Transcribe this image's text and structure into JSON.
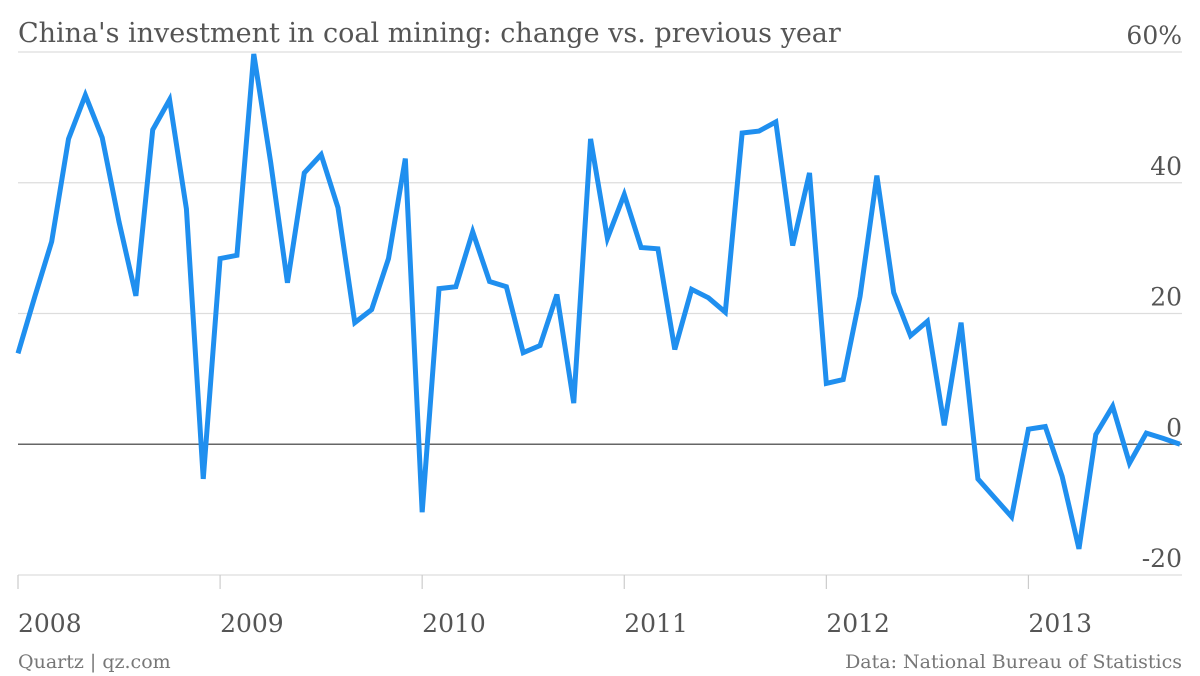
{
  "chart_data": {
    "type": "line",
    "title": "China's investment in coal mining: change vs. previous year",
    "source": "Data: National Bureau of Statistics",
    "credit": "Quartz | qz.com",
    "categories": [
      "2008",
      null,
      null,
      null,
      null,
      null,
      null,
      null,
      null,
      null,
      null,
      null,
      "2009",
      null,
      null,
      null,
      null,
      null,
      null,
      null,
      null,
      null,
      null,
      null,
      "2010",
      null,
      null,
      null,
      null,
      null,
      null,
      null,
      null,
      null,
      null,
      null,
      "2011",
      null,
      null,
      null,
      null,
      null,
      null,
      null,
      null,
      null,
      null,
      null,
      "2012",
      null,
      null,
      null,
      null,
      null,
      null,
      null,
      null,
      null,
      null,
      null,
      "2013",
      null,
      null,
      null,
      null,
      null,
      null,
      null,
      null,
      null
    ],
    "series": [
      {
        "name": "Change vs. previous year",
        "color": "#1f8fef",
        "values": [
          13.9,
          22.6,
          31,
          46.7,
          53.4,
          46.9,
          34,
          22.7,
          48.1,
          52.7,
          36,
          -5.3,
          28.4,
          28.9,
          59.7,
          43.2,
          24.7,
          41.5,
          44.3,
          36.2,
          18.6,
          20.6,
          28.4,
          43.7,
          -10.4,
          23.8,
          24.1,
          32.5,
          24.9,
          24.1,
          14,
          15.1,
          22.9,
          6.3,
          46.7,
          31.5,
          38.2,
          30.1,
          29.9,
          14.5,
          23.7,
          22.4,
          20.2,
          47.6,
          47.9,
          49.3,
          30.4,
          41.5,
          9.3,
          9.9,
          22.6,
          41.1,
          23.2,
          16.6,
          18.8,
          2.9,
          18.6,
          -5.3,
          -8.2,
          -11.1,
          2.3,
          2.7,
          -4.9,
          -16,
          1.5,
          5.8,
          -2.9,
          1.7,
          0.9,
          0
        ]
      }
    ],
    "ylim": [
      -20,
      60
    ],
    "yticks": [
      -20,
      0,
      20,
      40,
      {
        "value": 60,
        "label": "60%"
      }
    ],
    "grid": true
  }
}
